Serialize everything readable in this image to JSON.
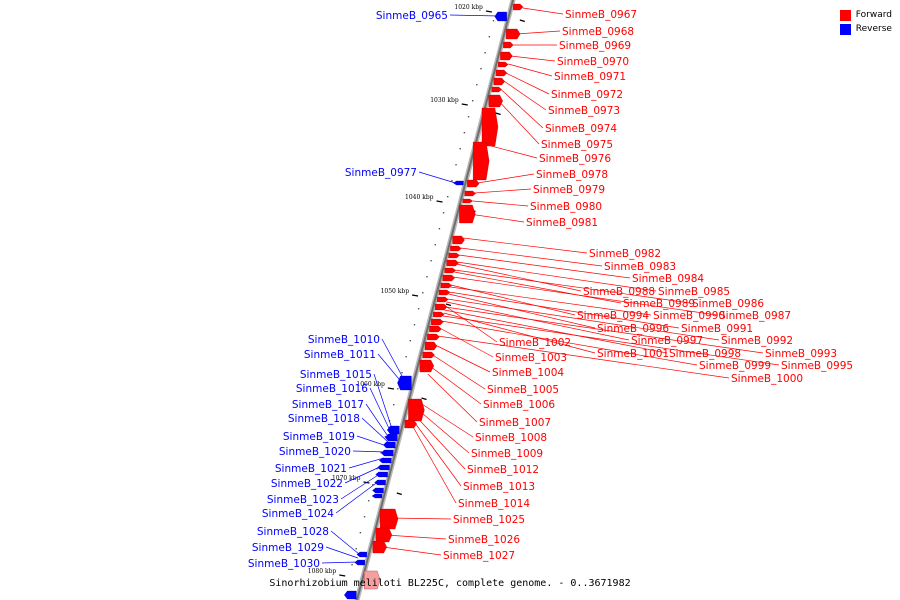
{
  "caption": "Sinorhizobium meliloti BL225C, complete genome. - 0..3671982",
  "legend": [
    {
      "label": "Forward",
      "color": "#ff0000"
    },
    {
      "label": "Reverse",
      "color": "#0000ff"
    }
  ],
  "colors": {
    "forward": "#ff0000",
    "reverse": "#0000ff",
    "backbone": "#909090"
  },
  "ticks": [
    "1020 kbp",
    "1030 kbp",
    "1040 kbp",
    "1050 kbp",
    "1060 kbp",
    "1070 kbp",
    "1080 kbp"
  ],
  "genes_forward": [
    "SinmeB_0967",
    "SinmeB_0968",
    "SinmeB_0969",
    "SinmeB_0970",
    "SinmeB_0971",
    "SinmeB_0972",
    "SinmeB_0973",
    "SinmeB_0974",
    "SinmeB_0975",
    "SinmeB_0976",
    "SinmeB_0978",
    "SinmeB_0979",
    "SinmeB_0980",
    "SinmeB_0981",
    "SinmeB_0982",
    "SinmeB_0983",
    "SinmeB_0984",
    "SinmeB_0985",
    "SinmeB_0988",
    "SinmeB_0986",
    "SinmeB_0989",
    "SinmeB_0987",
    "SinmeB_0994",
    "SinmeB_0990",
    "SinmeB_0991",
    "SinmeB_0996",
    "SinmeB_0992",
    "SinmeB_0997",
    "SinmeB_1002",
    "SinmeB_0993",
    "SinmeB_0998",
    "SinmeB_1001",
    "SinmeB_0995",
    "SinmeB_0999",
    "SinmeB_1003",
    "SinmeB_1000",
    "SinmeB_1004",
    "SinmeB_1005",
    "SinmeB_1006",
    "SinmeB_1007",
    "SinmeB_1008",
    "SinmeB_1009",
    "SinmeB_1012",
    "SinmeB_1013",
    "SinmeB_1014",
    "SinmeB_1025",
    "SinmeB_1026",
    "SinmeB_1027"
  ],
  "genes_reverse": [
    "SinmeB_0965",
    "SinmeB_0977",
    "SinmeB_1010",
    "SinmeB_1011",
    "SinmeB_1015",
    "SinmeB_1016",
    "SinmeB_1017",
    "SinmeB_1018",
    "SinmeB_1019",
    "SinmeB_1020",
    "SinmeB_1021",
    "SinmeB_1022",
    "SinmeB_1023",
    "SinmeB_1024",
    "SinmeB_1028",
    "SinmeB_1029",
    "SinmeB_1030"
  ]
}
